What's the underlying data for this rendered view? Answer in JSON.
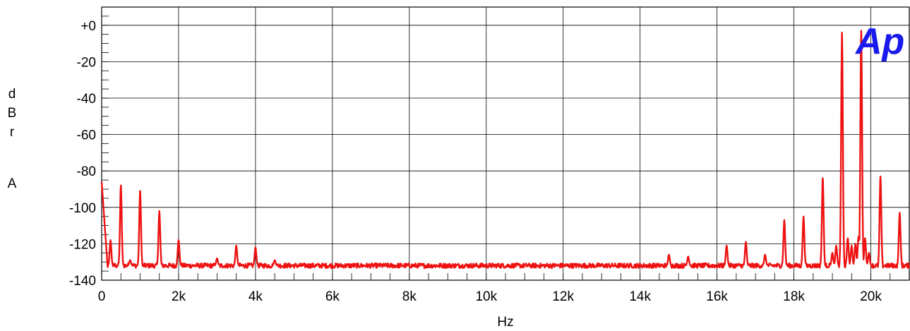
{
  "chart_data": {
    "type": "line",
    "title": "",
    "xlabel": "Hz",
    "ylabel_chars": [
      "d",
      "B",
      "r",
      "",
      "A"
    ],
    "xlim": [
      0,
      21000
    ],
    "ylim": [
      -140,
      10
    ],
    "x_ticks": [
      0,
      2000,
      4000,
      6000,
      8000,
      10000,
      12000,
      14000,
      16000,
      18000,
      20000
    ],
    "x_tick_labels": [
      "0",
      "2k",
      "4k",
      "6k",
      "8k",
      "10k",
      "12k",
      "14k",
      "16k",
      "18k",
      "20k"
    ],
    "y_ticks": [
      0,
      -20,
      -40,
      -60,
      -80,
      -100,
      -120,
      -140
    ],
    "y_tick_labels": [
      "+0",
      "-20",
      "-40",
      "-60",
      "-80",
      "-100",
      "-120",
      "-140"
    ],
    "grid": true,
    "logo": "Ap",
    "colors": {
      "trace": "#ee1111",
      "logo": "#1a1aee",
      "grid": "#000000"
    },
    "noise_floor_db": -132,
    "series": [
      {
        "values_note": "",
        "peaks": [
          {
            "x": 0,
            "y": -86
          },
          {
            "x": 230,
            "y": -118
          },
          {
            "x": 500,
            "y": -88
          },
          {
            "x": 740,
            "y": -129
          },
          {
            "x": 1000,
            "y": -91
          },
          {
            "x": 1500,
            "y": -102
          },
          {
            "x": 2000,
            "y": -118
          },
          {
            "x": 3000,
            "y": -128
          },
          {
            "x": 3500,
            "y": -121
          },
          {
            "x": 4000,
            "y": -122
          },
          {
            "x": 4500,
            "y": -129
          },
          {
            "x": 14750,
            "y": -126
          },
          {
            "x": 15250,
            "y": -127
          },
          {
            "x": 16250,
            "y": -121
          },
          {
            "x": 16750,
            "y": -119
          },
          {
            "x": 17250,
            "y": -126
          },
          {
            "x": 17750,
            "y": -107
          },
          {
            "x": 18250,
            "y": -105
          },
          {
            "x": 18750,
            "y": -84
          },
          {
            "x": 19000,
            "y": -125
          },
          {
            "x": 19100,
            "y": -121
          },
          {
            "x": 19250,
            "y": -4
          },
          {
            "x": 19400,
            "y": -117
          },
          {
            "x": 19500,
            "y": -121
          },
          {
            "x": 19600,
            "y": -120
          },
          {
            "x": 19680,
            "y": -116
          },
          {
            "x": 19750,
            "y": -3
          },
          {
            "x": 19850,
            "y": -117
          },
          {
            "x": 19950,
            "y": -125
          },
          {
            "x": 20250,
            "y": -83
          },
          {
            "x": 20750,
            "y": -103
          }
        ]
      }
    ]
  }
}
